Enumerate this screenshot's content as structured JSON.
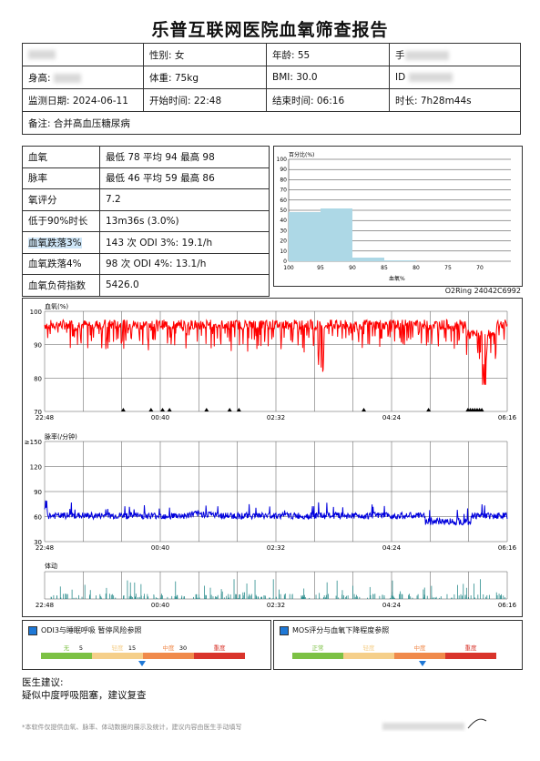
{
  "title": "乐普互联网医院血氧筛查报告",
  "info": {
    "gender": "性别: 女",
    "age": "年龄: 55",
    "phone_prefix": "手",
    "height_prefix": "身高:",
    "weight": "体重: 75kg",
    "bmi": "BMI: 30.0",
    "id_prefix": "ID",
    "date": "监测日期: 2024-06-11",
    "start": "开始时间: 22:48",
    "end": "结束时间: 06:16",
    "duration": "时长: 7h28m44s",
    "note": "备注: 合并高血压糖尿病"
  },
  "stats": [
    {
      "label": "血氧",
      "value": "最低 78 平均 94 最高 98"
    },
    {
      "label": "脉率",
      "value": "最低 46 平均 59 最高 86"
    },
    {
      "label": "氧评分",
      "value": "7.2"
    },
    {
      "label": "低于90%时长",
      "value": "13m36s (3.0%)"
    },
    {
      "label": "血氧跌落3%",
      "value": "143 次 ODI 3%: 19.1/h"
    },
    {
      "label": "血氧跌落4%",
      "value": "98 次 ODI 4%: 13.1/h"
    },
    {
      "label": "血氧负荷指数",
      "value": "5426.0"
    }
  ],
  "histogram": {
    "ylabel": "百分比(%)",
    "xlabel": "血氧%",
    "y_ticks": [
      "100",
      "90",
      "80",
      "70",
      "60",
      "50",
      "40",
      "30",
      "20",
      "10",
      "0"
    ],
    "x_ticks": [
      "100",
      "95",
      "90",
      "85",
      "80",
      "75",
      "70"
    ],
    "bar_color": "#add8e6"
  },
  "device": "O2Ring 24042C6992",
  "spo2_chart": {
    "label": "血氧(%)",
    "y_ticks": [
      "100",
      "90",
      "80",
      "70"
    ],
    "color": "#ff0000"
  },
  "pulse_chart": {
    "label": "脉率(/分钟)",
    "y_ticks": [
      "≥150",
      "120",
      "90",
      "60",
      "30"
    ],
    "color": "#0000dd"
  },
  "motion_chart": {
    "label": "体动",
    "color": "#2a8c8c"
  },
  "time_ticks": [
    "22:48",
    "00:40",
    "02:32",
    "04:24",
    "06:16"
  ],
  "legend_odi": {
    "title": "ODI3与睡眠呼吸 暂停风险参照",
    "segments": [
      "无",
      "轻度",
      "中度",
      "重度"
    ],
    "thresholds": [
      "5",
      "15",
      "30"
    ],
    "colors": [
      "#7cc144",
      "#f5cf8a",
      "#f08a4b",
      "#d9342b"
    ]
  },
  "legend_mos": {
    "title": "MOS评分与血氧下降程度参照",
    "segments": [
      "正常",
      "轻度",
      "中度",
      "重度"
    ],
    "colors": [
      "#7cc144",
      "#f5cf8a",
      "#f08a4b",
      "#d9342b"
    ]
  },
  "advice_heading": "医生建议:",
  "advice_text": "疑似中度呼吸阻塞，建议复查",
  "footnote": "*本软件仅提供血氧、脉率、体动数据的展示及统计，建议内容由医生手动填写"
}
